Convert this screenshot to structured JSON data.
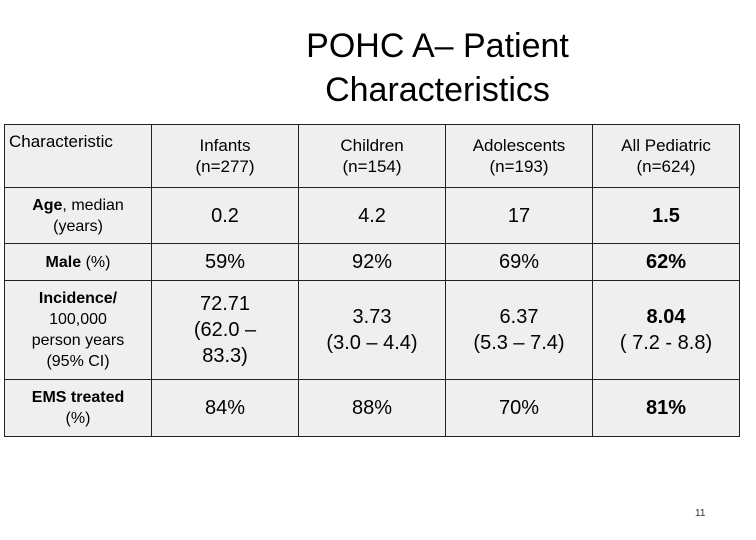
{
  "title_line1": "POHC A– Patient",
  "title_line2": "Characteristics",
  "headers": [
    {
      "line1": "Characteristic",
      "line2": ""
    },
    {
      "line1": "Infants",
      "line2": "(n=277)"
    },
    {
      "line1": "Children",
      "line2": "(n=154)"
    },
    {
      "line1": "Adolescents",
      "line2": "(n=193)"
    },
    {
      "line1": "All Pediatric",
      "line2": "(n=624)"
    }
  ],
  "rows": [
    {
      "label_bold": "Age",
      "label_rest": ", median",
      "label_line2": "(years)",
      "label_line3": "",
      "label_line4": "",
      "values": [
        {
          "l1": "0.2",
          "l2": "",
          "l3": ""
        },
        {
          "l1": "4.2",
          "l2": "",
          "l3": ""
        },
        {
          "l1": "17",
          "l2": "",
          "l3": ""
        },
        {
          "l1": "1.5",
          "l2": "",
          "l3": ""
        }
      ]
    },
    {
      "label_bold": "Male",
      "label_rest": " (%)",
      "label_line2": "",
      "label_line3": "",
      "label_line4": "",
      "values": [
        {
          "l1": "59%",
          "l2": "",
          "l3": ""
        },
        {
          "l1": "92%",
          "l2": "",
          "l3": ""
        },
        {
          "l1": "69%",
          "l2": "",
          "l3": ""
        },
        {
          "l1": "62%",
          "l2": "",
          "l3": ""
        }
      ]
    },
    {
      "label_bold": "Incidence/",
      "label_rest": "",
      "label_line2": "100,000",
      "label_line3": "person years",
      "label_line4": "(95% CI)",
      "values": [
        {
          "l1": "72.71",
          "l2": "(62.0 –",
          "l3": "83.3)"
        },
        {
          "l1": "3.73",
          "l2": "(3.0 – 4.4)",
          "l3": ""
        },
        {
          "l1": "6.37",
          "l2": "(5.3 – 7.4)",
          "l3": ""
        },
        {
          "l1": "8.04",
          "l2": "( 7.2 - 8.8)",
          "l3": ""
        }
      ]
    },
    {
      "label_bold": "EMS treated",
      "label_rest": "",
      "label_line2": "(%)",
      "label_line3": "",
      "label_line4": "",
      "values": [
        {
          "l1": "84%",
          "l2": "",
          "l3": ""
        },
        {
          "l1": "88%",
          "l2": "",
          "l3": ""
        },
        {
          "l1": "70%",
          "l2": "",
          "l3": ""
        },
        {
          "l1": "81%",
          "l2": "",
          "l3": ""
        }
      ]
    }
  ],
  "page_number": "11"
}
